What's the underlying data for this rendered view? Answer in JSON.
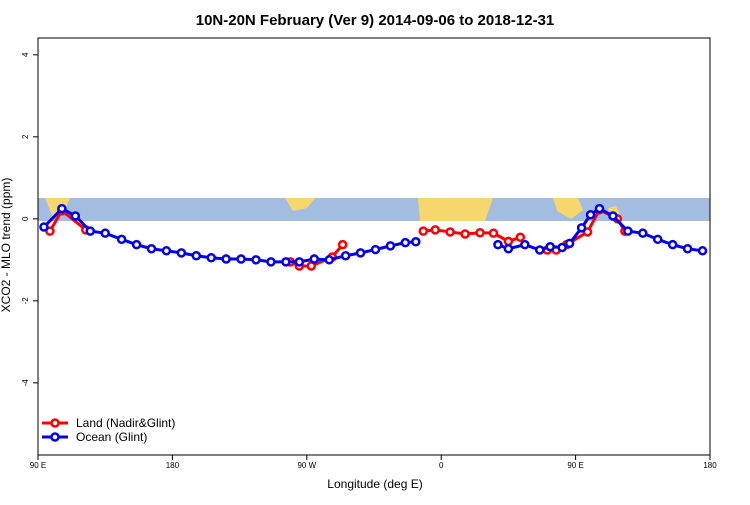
{
  "chart_data": {
    "type": "line",
    "title": "10N-20N February (Ver 9)   2014-09-06 to 2018-12-31",
    "x_label": "Longitude (deg E)",
    "y_label": "XCO2 - MLO trend (ppm)",
    "xlim": [
      90,
      540
    ],
    "ylim": [
      -5.76,
      4.41
    ],
    "xticks": [
      {
        "value": 90,
        "label": "90 E"
      },
      180,
      {
        "value": 270,
        "label": "90 W"
      },
      {
        "value": 360,
        "label": "0"
      },
      {
        "value": 450,
        "label": "90 E"
      },
      {
        "value": 540,
        "label": "180"
      }
    ],
    "yticks": [
      -4,
      -2,
      0,
      2,
      4
    ],
    "legend": "bottom-left",
    "series": [
      {
        "name": "Land (Nadir&Glint)",
        "color": "#ff0000",
        "x": [
          98,
          106,
          122,
          null,
          259,
          265,
          273,
          287,
          294,
          null,
          348,
          356,
          366,
          376,
          386,
          395,
          405,
          413,
          null,
          431,
          437,
          444,
          458,
          466,
          478,
          483
        ],
        "values": [
          -0.3,
          0.2,
          -0.27,
          null,
          -1.05,
          -1.15,
          -1.15,
          -0.93,
          -0.63,
          null,
          -0.3,
          -0.27,
          -0.32,
          -0.37,
          -0.34,
          -0.35,
          -0.55,
          -0.45,
          null,
          -0.76,
          -0.76,
          -0.63,
          -0.32,
          0.22,
          0,
          -0.3
        ]
      },
      {
        "name": "Ocean (Glint)",
        "color": "#0000ee",
        "x": [
          94,
          106,
          115,
          125,
          135,
          146,
          156,
          166,
          176,
          186,
          196,
          206,
          216,
          226,
          236,
          246,
          256,
          265,
          275,
          285,
          296,
          306,
          316,
          326,
          336,
          343,
          null,
          398,
          405,
          416,
          426,
          433,
          441,
          446,
          454,
          460,
          466,
          475,
          485,
          495,
          505,
          515,
          525,
          535
        ],
        "values": [
          -0.2,
          0.25,
          0.07,
          -0.3,
          -0.35,
          -0.5,
          -0.63,
          -0.73,
          -0.78,
          -0.83,
          -0.9,
          -0.95,
          -0.98,
          -0.98,
          -1.0,
          -1.05,
          -1.05,
          -1.05,
          -0.98,
          -1.0,
          -0.9,
          -0.83,
          -0.75,
          -0.66,
          -0.58,
          -0.56,
          null,
          -0.63,
          -0.73,
          -0.63,
          -0.76,
          -0.68,
          -0.7,
          -0.6,
          -0.22,
          0.1,
          0.25,
          0.07,
          -0.3,
          -0.35,
          -0.5,
          -0.63,
          -0.73,
          -0.78
        ]
      }
    ]
  }
}
